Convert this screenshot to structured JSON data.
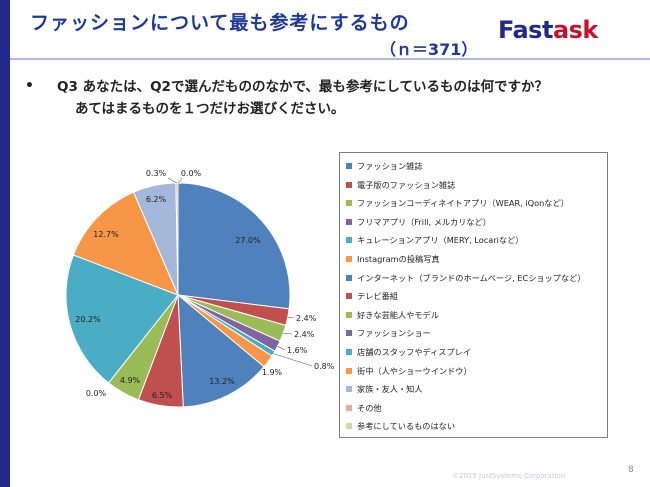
{
  "header": {
    "title": "ファッションについて最も参考にするもの",
    "subtitle": "（ｎ＝371）",
    "logo_main": "Fast",
    "logo_accent": "ask"
  },
  "question": {
    "bullet": "•",
    "line1": "Q3 あなたは、Q2で選んだもののなかで、最も参考にしているものは何ですか？",
    "line2": "あてはまるものを１つだけお選びください。"
  },
  "chart_data": {
    "type": "pie",
    "categories": [
      "ファッション雑誌",
      "電子版のファッション雑誌",
      "ファッションコーディネイトアプリ（WEAR, iQonなど）",
      "フリマアプリ（Frill, メルカリなど）",
      "キュレーションアプリ（MERY, Locariなど）",
      "Instagramの投稿写真",
      "インターネット（ブランドのホームページ, ECショップなど）",
      "テレビ番組",
      "好きな芸能人やモデル",
      "ファッションショー",
      "店舗のスタッフやディスプレイ",
      "街中（人やショーウインドウ）",
      "家族・友人・知人",
      "その他",
      "参考にしているものはない"
    ],
    "values": [
      27.0,
      2.4,
      2.4,
      1.6,
      0.8,
      1.9,
      13.2,
      6.5,
      4.9,
      0.0,
      20.2,
      12.7,
      6.2,
      0.3,
      0.0
    ],
    "labels": [
      "27.0%",
      "2.4%",
      "2.4%",
      "1.6%",
      "0.8%",
      "1.9%",
      "13.2%",
      "6.5%",
      "4.9%",
      "0.0%",
      "20.2%",
      "12.7%",
      "6.2%",
      "0.3%",
      "0.0%"
    ],
    "colors": [
      "#4f81bd",
      "#c0504d",
      "#9bbb59",
      "#8064a2",
      "#4bacc6",
      "#f79646",
      "#4f81bd",
      "#c0504d",
      "#9bbb59",
      "#8064a2",
      "#4bacc6",
      "#f79646",
      "#a5b8d9",
      "#e6a9a7",
      "#c9dba7"
    ],
    "legend_position": "right"
  },
  "footer": {
    "copyright": "©2015 JustSystems Corporation",
    "page": "8"
  }
}
